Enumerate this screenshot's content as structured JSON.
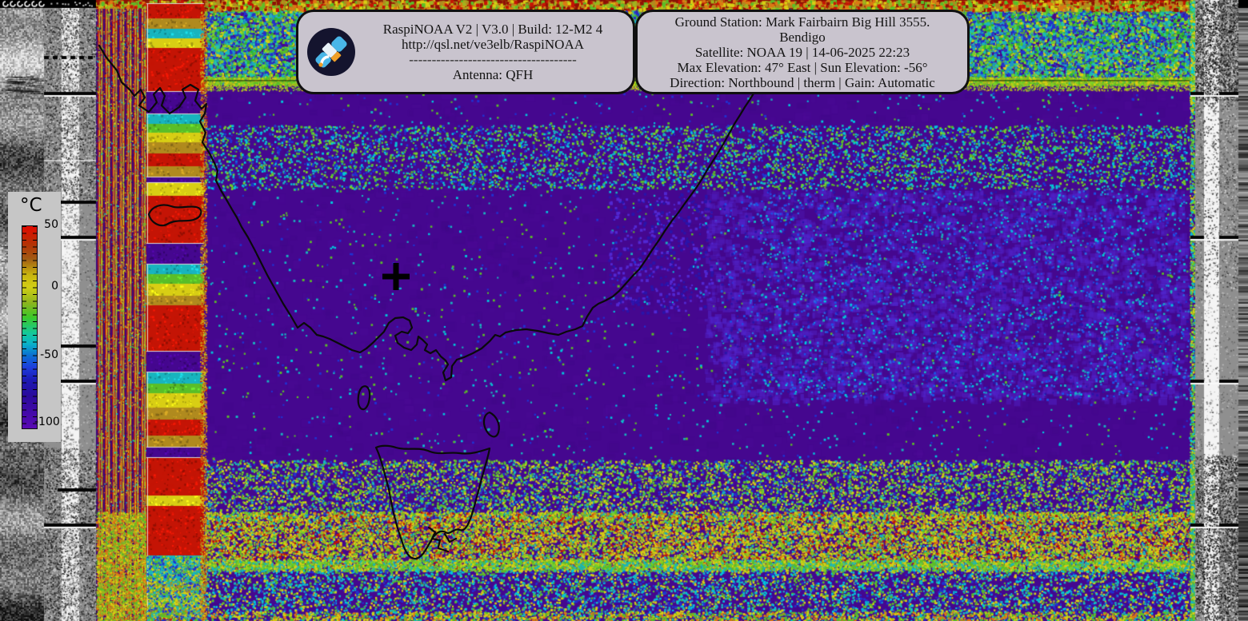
{
  "software_panel": {
    "title_line": "RaspiNOAA V2 | V3.0 | Build: 12-M2 4",
    "url_line": "http://qsl.net/ve3elb/RaspiNOAA",
    "separator": "-------------------------------------",
    "antenna_line": "Antenna: QFH"
  },
  "station_panel": {
    "ground_station_line": "Ground Station: Mark Fairbairn Big Hill 3555.",
    "city_line": "Bendigo",
    "satellite_line": "Satellite: NOAA 19 | 14-06-2025 22:23",
    "elevation_line": "Max Elevation: 47° East | Sun Elevation: -56°",
    "direction_line": "Direction: Northbound | therm | Gain: Automatic"
  },
  "temperature_scale": {
    "unit": "°C",
    "ticks": [
      "50",
      "0",
      "-50",
      "-100"
    ],
    "gradient": [
      "#e00a00",
      "#b43205",
      "#a15a14",
      "#c8b40f",
      "#d2ce14",
      "#8cb41e",
      "#3cc828",
      "#14c89b",
      "#0ab4c8",
      "#0a6ed2",
      "#1e3cdc",
      "#1c1ab4",
      "#2a0a9b",
      "#5a0ab4"
    ]
  },
  "colors": {
    "map_base": "#45078f",
    "panel_bg": "#c9c4ce",
    "noise_teal": "#12aec8",
    "noise_green": "#32c832",
    "noise_yellow": "#d8d21e",
    "noise_orange": "#dc7814",
    "noise_red": "#c41405",
    "noise_olive": "#b08a1e",
    "noise_blue": "#2032d2"
  }
}
